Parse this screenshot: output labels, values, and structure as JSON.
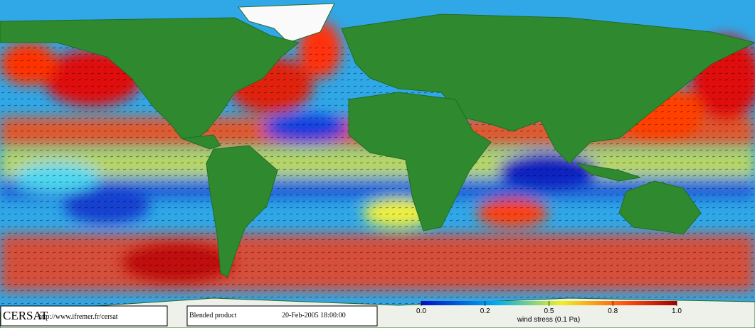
{
  "footer": {
    "logo": "CERSAT",
    "url": "http://www.ifremer.fr/cersat",
    "product": "Blended product",
    "date": "20-Feb-2005 18:00:00"
  },
  "colorbar": {
    "label": "wind stress (0.1 Pa)",
    "ticks": [
      {
        "value": 0,
        "label": "0.0"
      },
      0.2,
      0.5,
      0.8,
      {
        "value": 1,
        "label": "1.0"
      }
    ]
  }
}
